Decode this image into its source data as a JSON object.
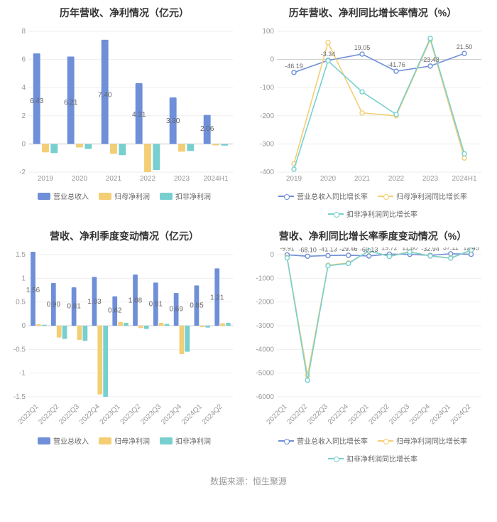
{
  "colors": {
    "series1": "#6f8fd8",
    "series2": "#f3ce74",
    "series3": "#77d0cf",
    "grid": "#eeeeee",
    "axis": "#cccccc",
    "tick": "#999999",
    "label": "#666666",
    "bg": "#ffffff"
  },
  "footer": "数据来源：恒生聚源",
  "charts": {
    "tl": {
      "title": "历年营收、净利情况（亿元）",
      "type": "bar",
      "categories": [
        "2019",
        "2020",
        "2021",
        "2022",
        "2023",
        "2024H1"
      ],
      "series": [
        {
          "name": "营业总收入",
          "color": "#6f8fd8",
          "values": [
            6.43,
            6.21,
            7.4,
            4.31,
            3.3,
            2.06
          ],
          "show_labels": true
        },
        {
          "name": "归母净利润",
          "color": "#f3ce74",
          "values": [
            -0.6,
            -0.25,
            -0.7,
            -2.0,
            -0.55,
            -0.1
          ],
          "show_labels": false
        },
        {
          "name": "扣非净利润",
          "color": "#77d0cf",
          "values": [
            -0.65,
            -0.35,
            -0.8,
            -1.85,
            -0.5,
            -0.12
          ],
          "show_labels": false
        }
      ],
      "ylim": [
        -2,
        8
      ],
      "yticks": [
        -2,
        0,
        2,
        4,
        6,
        8
      ],
      "bar_group_width": 0.72,
      "bar_gap": 0.05,
      "label_fontsize": 10,
      "x_rotate": 0
    },
    "tr": {
      "title": "历年营收、净利同比增长率情况（%）",
      "type": "line",
      "categories": [
        "2019",
        "2020",
        "2021",
        "2022",
        "2023",
        "2024H1"
      ],
      "series": [
        {
          "name": "营业总收入同比增长率",
          "color": "#6f8fd8",
          "values": [
            -46.19,
            -3.34,
            19.05,
            -41.76,
            -23.43,
            21.5
          ]
        },
        {
          "name": "归母净利润同比增长率",
          "color": "#f3ce74",
          "values": [
            -370,
            60,
            -190,
            -200,
            70,
            -350
          ]
        },
        {
          "name": "扣非净利润同比增长率",
          "color": "#77d0cf",
          "values": [
            -390,
            -5,
            -115,
            -195,
            75,
            -335
          ]
        }
      ],
      "point_labels": {
        "series_index": 0,
        "values": [
          "-46.19",
          "-3.34",
          "19.05",
          "-41.76",
          "-23.43",
          "21.50"
        ]
      },
      "ylim": [
        -400,
        100
      ],
      "yticks": [
        -400,
        -300,
        -200,
        -100,
        0,
        100
      ],
      "x_rotate": 0
    },
    "bl": {
      "title": "营收、净利季度变动情况（亿元）",
      "type": "bar",
      "categories": [
        "2022Q1",
        "2022Q2",
        "2022Q3",
        "2022Q4",
        "2023Q1",
        "2023Q2",
        "2023Q3",
        "2023Q4",
        "2024Q1",
        "2024Q2"
      ],
      "series": [
        {
          "name": "营业总收入",
          "color": "#6f8fd8",
          "values": [
            1.56,
            0.9,
            0.81,
            1.03,
            0.62,
            1.08,
            0.91,
            0.69,
            0.85,
            1.21
          ],
          "show_labels": true
        },
        {
          "name": "归母净利润",
          "color": "#f3ce74",
          "values": [
            0.03,
            -0.25,
            -0.3,
            -1.45,
            0.08,
            -0.05,
            0.06,
            -0.6,
            -0.03,
            0.05
          ],
          "show_labels": false
        },
        {
          "name": "扣非净利润",
          "color": "#77d0cf",
          "values": [
            0.02,
            -0.28,
            -0.32,
            -1.5,
            0.06,
            -0.07,
            0.04,
            -0.55,
            -0.04,
            0.06
          ],
          "show_labels": false
        }
      ],
      "ylim": [
        -1.5,
        1.5
      ],
      "yticks": [
        -1.5,
        -1,
        -0.5,
        0,
        0.5,
        1,
        1.5
      ],
      "bar_group_width": 0.78,
      "bar_gap": 0.04,
      "label_fontsize": 9,
      "x_rotate": -45
    },
    "br": {
      "title": "营收、净利同比增长率季度变动情况（%）",
      "type": "line",
      "categories": [
        "2022Q1",
        "2022Q2",
        "2022Q3",
        "2022Q4",
        "2023Q1",
        "2023Q2",
        "2023Q3",
        "2023Q4",
        "2024Q1",
        "2024Q2"
      ],
      "series": [
        {
          "name": "营业总收入同比增长率",
          "color": "#6f8fd8",
          "values": [
            -9.91,
            -68.1,
            -41.13,
            -29.46,
            -60.13,
            19.72,
            11.6,
            -32.94,
            37.11,
            12.45
          ]
        },
        {
          "name": "归母净利润同比增长率",
          "color": "#f3ce74",
          "values": [
            -120,
            -5100,
            -450,
            -350,
            150,
            -70,
            120,
            -55,
            -140,
            180
          ]
        },
        {
          "name": "扣非净利润同比增长率",
          "color": "#77d0cf",
          "values": [
            -140,
            -5300,
            -470,
            -370,
            160,
            -80,
            110,
            -60,
            -150,
            190
          ]
        }
      ],
      "point_labels": {
        "series_index": 0,
        "values": [
          "-9.91",
          "-68.10",
          "-41.13",
          "-29.46",
          "-60.13",
          "19.72",
          "11.60",
          "-32.94",
          "37.11",
          "12.45"
        ]
      },
      "ylim": [
        -6000,
        0
      ],
      "yticks": [
        -6000,
        -5000,
        -4000,
        -3000,
        -2000,
        -1000,
        0
      ],
      "x_rotate": -45
    }
  }
}
